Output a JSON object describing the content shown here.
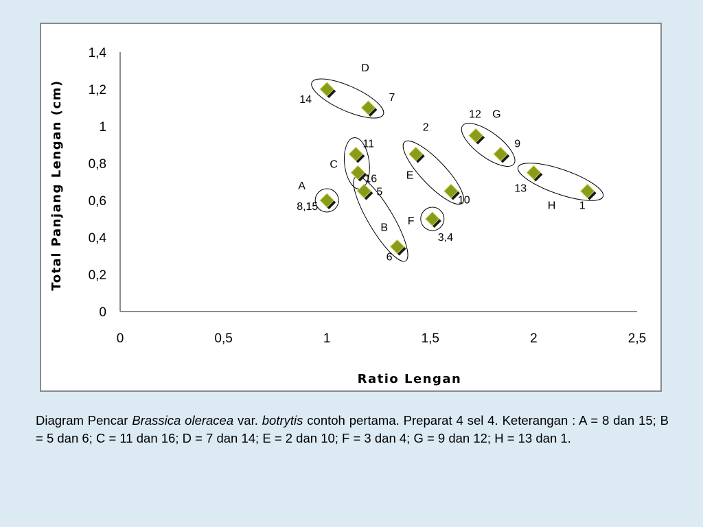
{
  "chart_data": {
    "type": "scatter",
    "title": "",
    "xlabel": "Ratio Lengan",
    "ylabel": "Total Panjang Lengan (cm)",
    "xlim": [
      0,
      2.5
    ],
    "ylim": [
      0,
      1.4
    ],
    "x_ticks": [
      "0",
      "0,5",
      "1",
      "1,5",
      "2",
      "2,5"
    ],
    "y_ticks": [
      "0",
      "0,2",
      "0,4",
      "0,6",
      "0,8",
      "1",
      "1,2",
      "1,4"
    ],
    "grid": false,
    "legend": "none",
    "marker_color": "#8a9a1a",
    "points": [
      {
        "label": "8,15",
        "x": 1.0,
        "y": 0.6
      },
      {
        "label": "5",
        "x": 1.18,
        "y": 0.65
      },
      {
        "label": "6",
        "x": 1.34,
        "y": 0.35
      },
      {
        "label": "11",
        "x": 1.14,
        "y": 0.85
      },
      {
        "label": "16",
        "x": 1.15,
        "y": 0.75
      },
      {
        "label": "14",
        "x": 1.0,
        "y": 1.2
      },
      {
        "label": "7",
        "x": 1.2,
        "y": 1.1
      },
      {
        "label": "2",
        "x": 1.43,
        "y": 0.85
      },
      {
        "label": "10",
        "x": 1.6,
        "y": 0.65
      },
      {
        "label": "3,4",
        "x": 1.51,
        "y": 0.5
      },
      {
        "label": "12",
        "x": 1.72,
        "y": 0.95
      },
      {
        "label": "9",
        "x": 1.84,
        "y": 0.85
      },
      {
        "label": "13",
        "x": 2.0,
        "y": 0.75
      },
      {
        "label": "1",
        "x": 2.26,
        "y": 0.65
      }
    ],
    "groups": [
      {
        "name": "A",
        "members": [
          "8,15"
        ]
      },
      {
        "name": "B",
        "members": [
          "5",
          "6"
        ]
      },
      {
        "name": "C",
        "members": [
          "11",
          "16"
        ]
      },
      {
        "name": "D",
        "members": [
          "14",
          "7"
        ]
      },
      {
        "name": "E",
        "members": [
          "2",
          "10"
        ]
      },
      {
        "name": "F",
        "members": [
          "3,4"
        ]
      },
      {
        "name": "G",
        "members": [
          "12",
          "9"
        ]
      },
      {
        "name": "H",
        "members": [
          "13",
          "1"
        ]
      }
    ]
  },
  "caption": {
    "part1": "Diagram Pencar ",
    "species_italic": "Brassica oleracea",
    "part2": " var. ",
    "variety_italic": "botrytis",
    "part3": " contoh pertama. Preparat 4 sel 4. Keterangan : A = 8 dan 15; B = 5 dan 6; C = 11 dan 16; D = 7 dan 14; E = 2 dan 10; F = 3 dan 4; G = 9 dan 12; H = 13 dan 1."
  }
}
